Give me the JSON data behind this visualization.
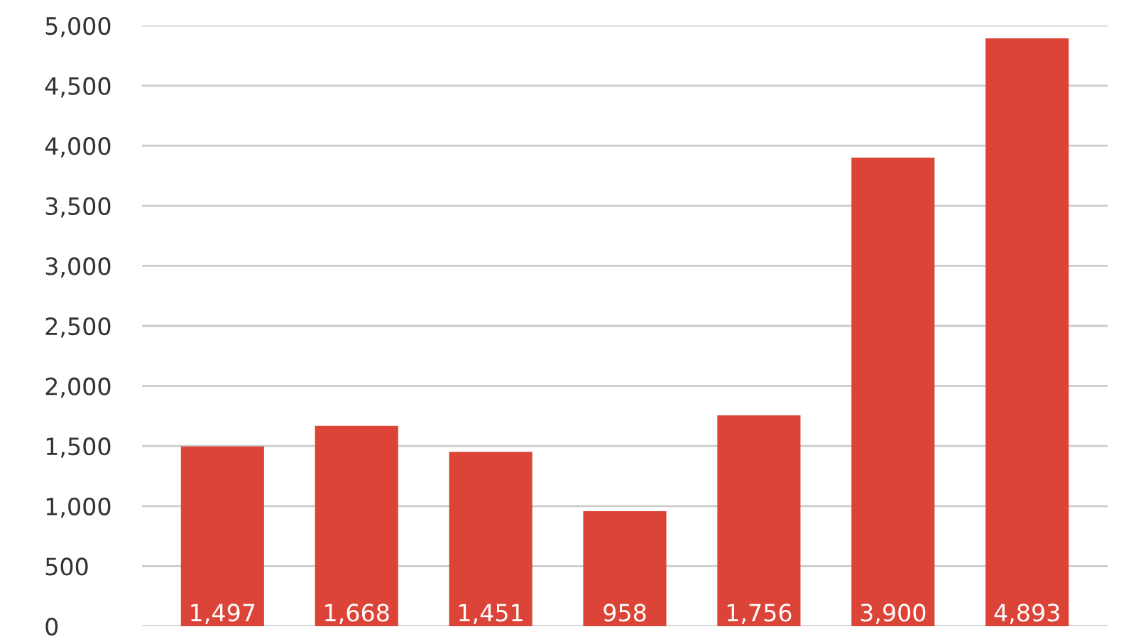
{
  "chart_data": {
    "type": "bar",
    "categories": [
      null,
      null,
      null,
      null,
      null,
      null,
      null
    ],
    "values": [
      1497,
      1668,
      1451,
      958,
      1756,
      3900,
      4893
    ],
    "value_labels": [
      "1,497",
      "1,668",
      "1,451",
      "958",
      "1,756",
      "3,900",
      "4,893"
    ],
    "color": "#db4437",
    "ylim": [
      0,
      5000
    ],
    "yticks": [
      {
        "value": 0,
        "label": "0"
      },
      {
        "value": 500,
        "label": "500"
      },
      {
        "value": 1000,
        "label": "1,000"
      },
      {
        "value": 1500,
        "label": "1,500"
      },
      {
        "value": 2000,
        "label": "2,000"
      },
      {
        "value": 2500,
        "label": "2,500"
      },
      {
        "value": 3000,
        "label": "3,000"
      },
      {
        "value": 3500,
        "label": "3,500"
      },
      {
        "value": 4000,
        "label": "4,000"
      },
      {
        "value": 4500,
        "label": "4,500"
      },
      {
        "value": 5000,
        "label": "5,000"
      }
    ],
    "grid": "y",
    "legend": false
  }
}
